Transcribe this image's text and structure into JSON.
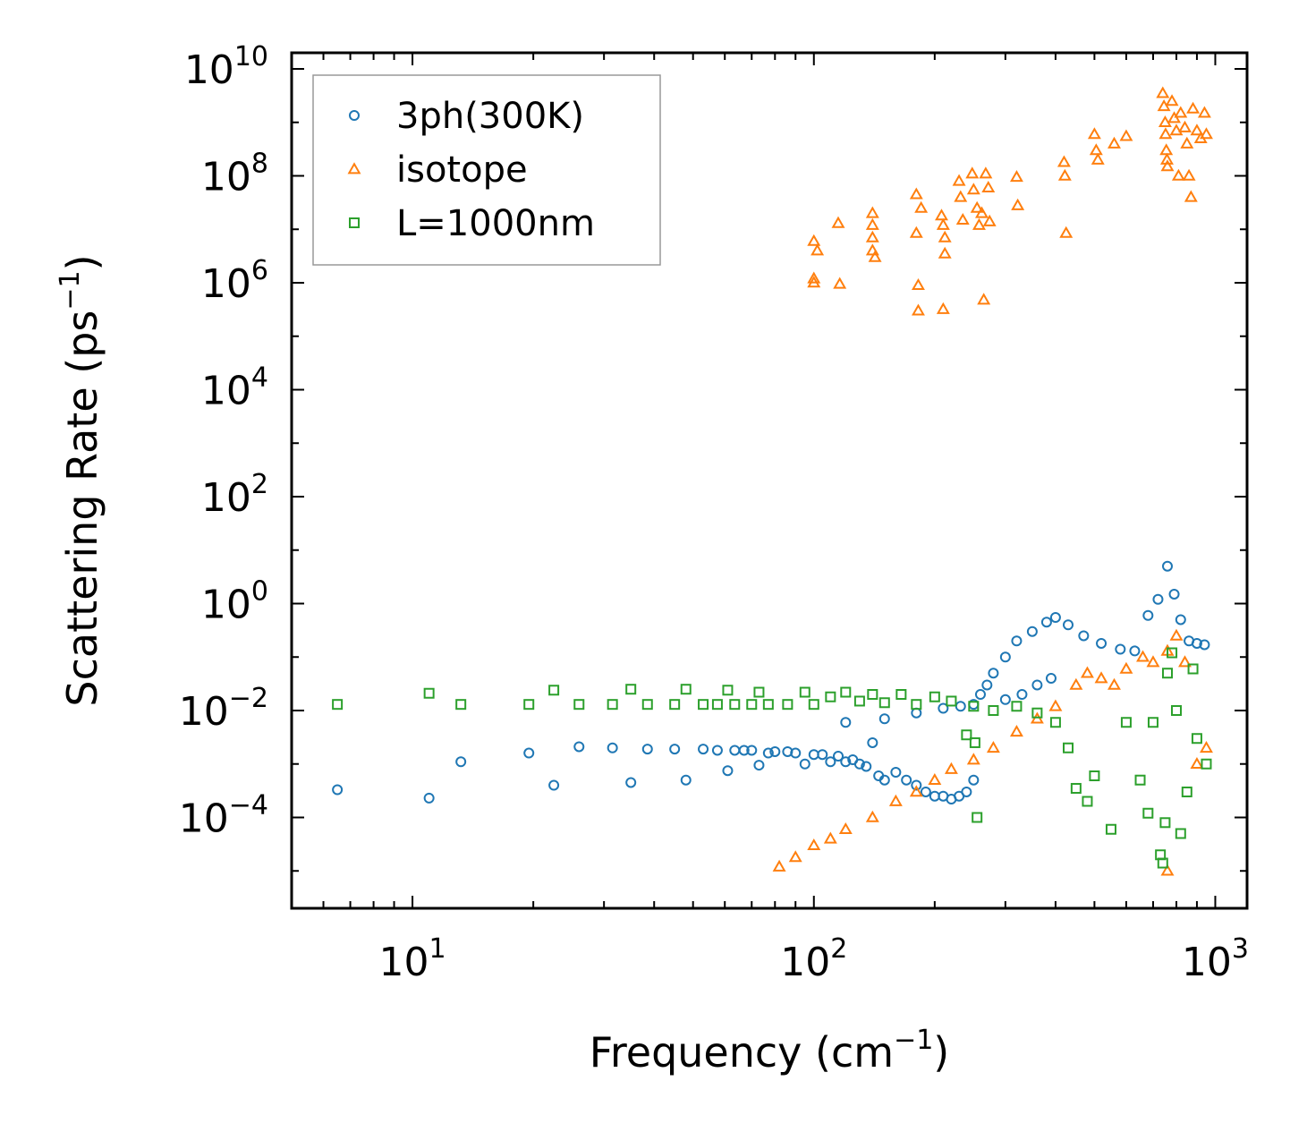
{
  "chart_data": {
    "type": "scatter",
    "title": "",
    "xlabel": {
      "base": "Frequency (cm",
      "sup": "−1",
      "tail": ")"
    },
    "ylabel": {
      "base": "Scattering Rate (ps",
      "sup": "−1",
      "tail": ")"
    },
    "xscale": "log",
    "yscale": "log",
    "xlim": [
      5,
      1200
    ],
    "ylim": [
      2e-06,
      20000000000
    ],
    "xticks": [
      {
        "value": 10,
        "base": "10",
        "exp": "1"
      },
      {
        "value": 100,
        "base": "10",
        "exp": "2"
      },
      {
        "value": 1000,
        "base": "10",
        "exp": "3"
      }
    ],
    "yticks": [
      {
        "value": 0.0001,
        "base": "10",
        "exp": "−4"
      },
      {
        "value": 0.01,
        "base": "10",
        "exp": "−2"
      },
      {
        "value": 1,
        "base": "10",
        "exp": "0"
      },
      {
        "value": 100,
        "base": "10",
        "exp": "2"
      },
      {
        "value": 10000,
        "base": "10",
        "exp": "4"
      },
      {
        "value": 1000000,
        "base": "10",
        "exp": "6"
      },
      {
        "value": 100000000,
        "base": "10",
        "exp": "8"
      },
      {
        "value": 10000000000,
        "base": "10",
        "exp": "10"
      }
    ],
    "grid": false,
    "legend_position": "top-left",
    "series": [
      {
        "name": "3ph(300K)",
        "marker": "circle",
        "color": "#1f77b4",
        "points": [
          [
            6.5,
            0.00033
          ],
          [
            11,
            0.00023
          ],
          [
            13.2,
            0.0011
          ],
          [
            19.5,
            0.0016
          ],
          [
            22.5,
            0.0004
          ],
          [
            26,
            0.0021
          ],
          [
            31.5,
            0.002
          ],
          [
            35,
            0.00045
          ],
          [
            38.5,
            0.0019
          ],
          [
            45,
            0.0019
          ],
          [
            48,
            0.0005
          ],
          [
            53,
            0.0019
          ],
          [
            57.5,
            0.0018
          ],
          [
            61,
            0.00075
          ],
          [
            63.5,
            0.0018
          ],
          [
            67,
            0.0018
          ],
          [
            70,
            0.0018
          ],
          [
            73,
            0.00095
          ],
          [
            77,
            0.0016
          ],
          [
            80,
            0.0017
          ],
          [
            86,
            0.0017
          ],
          [
            90,
            0.0016
          ],
          [
            95,
            0.001
          ],
          [
            100,
            0.0015
          ],
          [
            105,
            0.0015
          ],
          [
            110,
            0.0011
          ],
          [
            115,
            0.0014
          ],
          [
            120,
            0.0011
          ],
          [
            125,
            0.0012
          ],
          [
            130,
            0.001
          ],
          [
            135,
            0.0009
          ],
          [
            140,
            0.0025
          ],
          [
            145,
            0.0006
          ],
          [
            150,
            0.0005
          ],
          [
            160,
            0.0007
          ],
          [
            170,
            0.0005
          ],
          [
            180,
            0.0004
          ],
          [
            190,
            0.0003
          ],
          [
            200,
            0.00025
          ],
          [
            210,
            0.00025
          ],
          [
            220,
            0.00022
          ],
          [
            230,
            0.00025
          ],
          [
            240,
            0.0003
          ],
          [
            250,
            0.0005
          ],
          [
            232,
            0.012
          ],
          [
            260,
            0.02
          ],
          [
            270,
            0.03
          ],
          [
            280,
            0.05
          ],
          [
            300,
            0.1
          ],
          [
            320,
            0.2
          ],
          [
            350,
            0.3
          ],
          [
            380,
            0.45
          ],
          [
            400,
            0.55
          ],
          [
            430,
            0.4
          ],
          [
            470,
            0.25
          ],
          [
            520,
            0.18
          ],
          [
            580,
            0.14
          ],
          [
            630,
            0.13
          ],
          [
            680,
            0.6
          ],
          [
            720,
            1.2
          ],
          [
            760,
            5.0
          ],
          [
            790,
            1.5
          ],
          [
            820,
            0.5
          ],
          [
            860,
            0.2
          ],
          [
            900,
            0.18
          ],
          [
            940,
            0.17
          ],
          [
            120,
            0.006
          ],
          [
            150,
            0.007
          ],
          [
            180,
            0.009
          ],
          [
            210,
            0.011
          ],
          [
            250,
            0.013
          ],
          [
            300,
            0.016
          ],
          [
            330,
            0.02
          ],
          [
            360,
            0.03
          ],
          [
            390,
            0.04
          ]
        ]
      },
      {
        "name": "isotope",
        "marker": "triangle",
        "color": "#ff7f0e",
        "points": [
          [
            100,
            6000000
          ],
          [
            100,
            1000000
          ],
          [
            100,
            1200000
          ],
          [
            102,
            4000000
          ],
          [
            115,
            13000000
          ],
          [
            116,
            950000
          ],
          [
            140,
            20000000
          ],
          [
            140,
            12000000
          ],
          [
            140,
            7000000
          ],
          [
            140,
            4000000
          ],
          [
            142,
            3000000
          ],
          [
            180,
            45000000
          ],
          [
            180,
            8500000
          ],
          [
            182,
            900000
          ],
          [
            182,
            300000
          ],
          [
            185,
            25000000
          ],
          [
            208,
            18000000
          ],
          [
            210,
            12000000
          ],
          [
            212,
            7000000
          ],
          [
            212,
            3500000
          ],
          [
            210,
            320000
          ],
          [
            230,
            80000000
          ],
          [
            232,
            40000000
          ],
          [
            235,
            15000000
          ],
          [
            248,
            110000000
          ],
          [
            250,
            55000000
          ],
          [
            255,
            25000000
          ],
          [
            258,
            12000000
          ],
          [
            262,
            20000000
          ],
          [
            265,
            480000
          ],
          [
            268,
            110000000
          ],
          [
            272,
            60000000
          ],
          [
            274,
            14000000
          ],
          [
            320,
            95000000
          ],
          [
            322,
            28000000
          ],
          [
            420,
            180000000
          ],
          [
            422,
            100000000
          ],
          [
            425,
            8500000
          ],
          [
            500,
            600000000
          ],
          [
            505,
            300000000
          ],
          [
            510,
            200000000
          ],
          [
            560,
            400000000
          ],
          [
            600,
            550000000
          ],
          [
            740,
            3500000000
          ],
          [
            745,
            2000000000
          ],
          [
            750,
            1000000000
          ],
          [
            752,
            600000000
          ],
          [
            755,
            300000000
          ],
          [
            758,
            200000000
          ],
          [
            760,
            150000000
          ],
          [
            780,
            2500000000
          ],
          [
            790,
            1200000000
          ],
          [
            800,
            700000000
          ],
          [
            810,
            100000000
          ],
          [
            820,
            1500000000
          ],
          [
            840,
            800000000
          ],
          [
            850,
            400000000
          ],
          [
            860,
            100000000
          ],
          [
            870,
            40000000
          ],
          [
            880,
            1800000000
          ],
          [
            900,
            700000000
          ],
          [
            920,
            500000000
          ],
          [
            940,
            1500000000
          ],
          [
            950,
            600000000
          ],
          [
            82,
            1.2e-05
          ],
          [
            90,
            1.8e-05
          ],
          [
            100,
            3e-05
          ],
          [
            110,
            4e-05
          ],
          [
            120,
            6e-05
          ],
          [
            140,
            0.0001
          ],
          [
            160,
            0.0002
          ],
          [
            180,
            0.0003
          ],
          [
            200,
            0.0005
          ],
          [
            220,
            0.0008
          ],
          [
            250,
            0.0012
          ],
          [
            280,
            0.002
          ],
          [
            320,
            0.004
          ],
          [
            360,
            0.007
          ],
          [
            400,
            0.012
          ],
          [
            450,
            0.03
          ],
          [
            480,
            0.05
          ],
          [
            520,
            0.04
          ],
          [
            560,
            0.03
          ],
          [
            600,
            0.06
          ],
          [
            660,
            0.1
          ],
          [
            700,
            0.08
          ],
          [
            760,
            0.13
          ],
          [
            800,
            0.25
          ],
          [
            840,
            0.08
          ],
          [
            760,
            1e-05
          ],
          [
            900,
            0.001
          ],
          [
            950,
            0.002
          ]
        ]
      },
      {
        "name": "L=1000nm",
        "marker": "square",
        "color": "#2ca02c",
        "points": [
          [
            6.5,
            0.013
          ],
          [
            11,
            0.021
          ],
          [
            13.2,
            0.013
          ],
          [
            19.5,
            0.013
          ],
          [
            22.5,
            0.024
          ],
          [
            26,
            0.013
          ],
          [
            31.5,
            0.013
          ],
          [
            35,
            0.025
          ],
          [
            38.5,
            0.013
          ],
          [
            45,
            0.013
          ],
          [
            48,
            0.025
          ],
          [
            53,
            0.013
          ],
          [
            57.5,
            0.013
          ],
          [
            61,
            0.024
          ],
          [
            63.5,
            0.013
          ],
          [
            70,
            0.013
          ],
          [
            73,
            0.022
          ],
          [
            77,
            0.013
          ],
          [
            86,
            0.013
          ],
          [
            95,
            0.022
          ],
          [
            100,
            0.013
          ],
          [
            110,
            0.018
          ],
          [
            120,
            0.022
          ],
          [
            130,
            0.015
          ],
          [
            140,
            0.02
          ],
          [
            150,
            0.014
          ],
          [
            165,
            0.02
          ],
          [
            180,
            0.013
          ],
          [
            200,
            0.018
          ],
          [
            220,
            0.015
          ],
          [
            250,
            0.012
          ],
          [
            240,
            0.0035
          ],
          [
            252,
            0.0025
          ],
          [
            255,
            0.0001
          ],
          [
            280,
            0.01
          ],
          [
            320,
            0.012
          ],
          [
            360,
            0.009
          ],
          [
            400,
            0.006
          ],
          [
            430,
            0.002
          ],
          [
            450,
            0.00035
          ],
          [
            480,
            0.0002
          ],
          [
            500,
            0.0006
          ],
          [
            550,
            6e-05
          ],
          [
            600,
            0.006
          ],
          [
            650,
            0.0005
          ],
          [
            680,
            0.00012
          ],
          [
            700,
            0.006
          ],
          [
            730,
            2e-05
          ],
          [
            740,
            1.4e-05
          ],
          [
            750,
            8e-05
          ],
          [
            760,
            0.05
          ],
          [
            780,
            0.12
          ],
          [
            800,
            0.01
          ],
          [
            820,
            5e-05
          ],
          [
            850,
            0.0003
          ],
          [
            880,
            0.06
          ],
          [
            900,
            0.003
          ],
          [
            950,
            0.001
          ]
        ]
      }
    ]
  }
}
